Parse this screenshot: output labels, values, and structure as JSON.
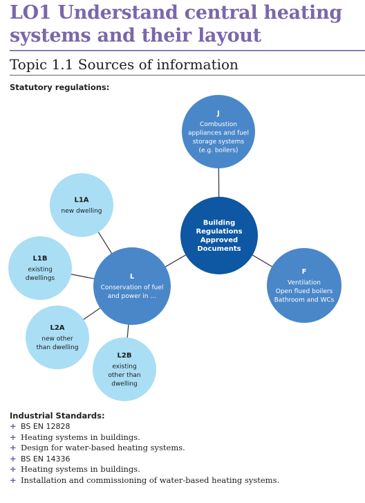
{
  "header": {
    "title_line1": "LO1 Understand central heating",
    "title_line2": "systems and their layout",
    "topic": "Topic 1.1 Sources of information"
  },
  "statutory_label": "Statutory regulations:",
  "diagram": {
    "center": {
      "lines": [
        "Building",
        "Regulations",
        "Approved",
        "Documents"
      ]
    },
    "node_j": {
      "title": "J",
      "lines": [
        "Combustion",
        "appliances and fuel",
        "storage systems",
        "(e.g. boilers)"
      ]
    },
    "node_f": {
      "title": "F",
      "lines": [
        "Ventilation",
        "Open flued boilers",
        "Bathroom and WCs"
      ]
    },
    "node_l": {
      "title": "L",
      "lines": [
        "Conservation of fuel",
        "and power in …"
      ]
    },
    "node_l1a": {
      "title": "L1A",
      "lines": [
        "new dwelling"
      ]
    },
    "node_l1b": {
      "title": "L1B",
      "lines": [
        "existing",
        "dwellings"
      ]
    },
    "node_l2a": {
      "title": "L2A",
      "lines": [
        "new other",
        "than dwelling"
      ]
    },
    "node_l2b": {
      "title": "L2B",
      "lines": [
        "existing",
        "other than",
        "dwelling"
      ]
    },
    "colors": {
      "dark": "#0d57a3",
      "mid": "#4a87c9",
      "light": "#a9def5"
    }
  },
  "industrial": {
    "label": "Industrial Standards:",
    "standards": [
      {
        "name": "BS EN 12828",
        "items": [
          "Heating systems in buildings.",
          "Design for water-based heating systems."
        ]
      },
      {
        "name": "BS EN 14336",
        "items": [
          "Heating systems in buildings.",
          "Installation and commissioning of water-based heating systems."
        ]
      }
    ]
  }
}
